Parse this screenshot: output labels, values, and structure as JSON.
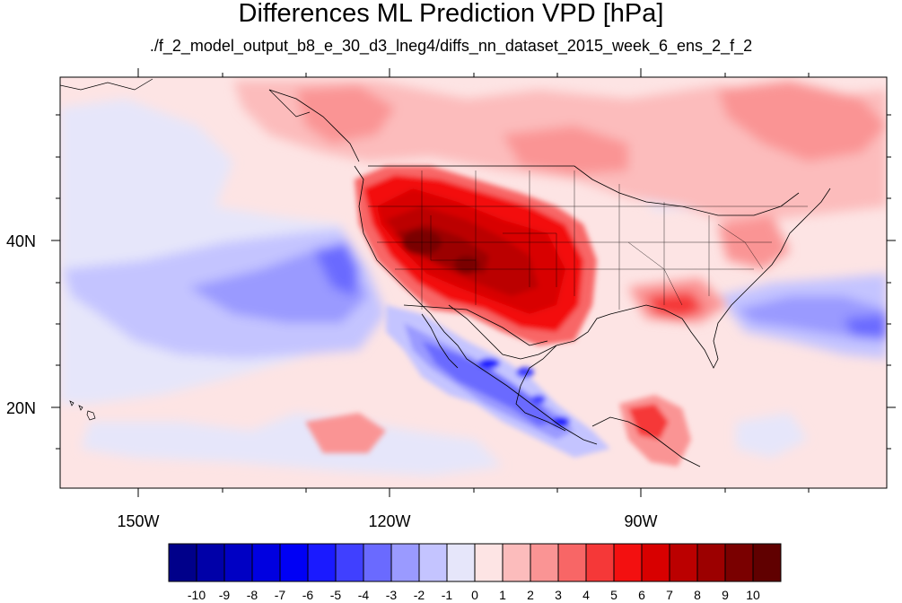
{
  "map": {
    "title": "Differences ML Prediction VPD [hPa]",
    "subtitle": "./f_2_model_output_b8_e_30_d3_lneg4/diffs_nn_dataset_2015_week_6_ens_2_f_2",
    "lat_labels": [
      "40N",
      "20N"
    ],
    "lon_labels": [
      "150W",
      "120W",
      "90W"
    ]
  },
  "colorbar": {
    "labels": [
      "-10",
      "-9",
      "-8",
      "-7",
      "-6",
      "-5",
      "-4",
      "-3",
      "-2",
      "-1",
      "0",
      "1",
      "2",
      "3",
      "4",
      "5",
      "6",
      "7",
      "8",
      "9",
      "10"
    ],
    "colors": [
      "#00008a",
      "#0000a8",
      "#0000c4",
      "#0000e0",
      "#0000f5",
      "#1a1aff",
      "#4040ff",
      "#6a6aff",
      "#9a9aff",
      "#c4c4ff",
      "#e6e6fa",
      "#fde4e4",
      "#fcbcbc",
      "#fa9494",
      "#f86666",
      "#f53838",
      "#f31010",
      "#d80000",
      "#bb0000",
      "#9c0000",
      "#7a0000",
      "#600000"
    ]
  }
}
